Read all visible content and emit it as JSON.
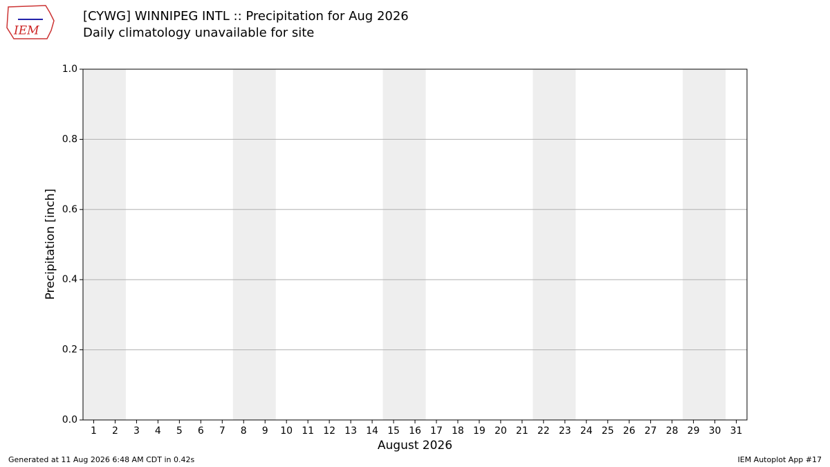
{
  "chart_data": {
    "type": "bar",
    "title": "[CYWG] WINNIPEG INTL :: Precipitation for Aug 2026",
    "subtitle": "Daily climatology unavailable for site",
    "xlabel": "August 2026",
    "ylabel": "Precipitation [inch]",
    "xlim": [
      0.5,
      31.5
    ],
    "xticks": [
      1,
      2,
      3,
      4,
      5,
      6,
      7,
      8,
      9,
      10,
      11,
      12,
      13,
      14,
      15,
      16,
      17,
      18,
      19,
      20,
      21,
      22,
      23,
      24,
      25,
      26,
      27,
      28,
      29,
      30,
      31
    ],
    "ylim": [
      0,
      1
    ],
    "yticks": [
      {
        "value": 0,
        "label": "0.0"
      },
      {
        "value": 0.2,
        "label": "0.2"
      },
      {
        "value": 0.4,
        "label": "0.4"
      },
      {
        "value": 0.6,
        "label": "0.6"
      },
      {
        "value": 0.8,
        "label": "0.8"
      },
      {
        "value": 1,
        "label": "1.0"
      }
    ],
    "grid": true,
    "shaded_ranges": [
      [
        0.5,
        2.5
      ],
      [
        7.5,
        9.5
      ],
      [
        14.5,
        16.5
      ],
      [
        21.5,
        23.5
      ],
      [
        28.5,
        30.5
      ]
    ],
    "shade_color": "#eeeeee"
  },
  "logo_text": "IEM",
  "footer": {
    "left": "Generated at 11 Aug 2026 6:48 AM CDT in 0.42s",
    "right": "IEM Autoplot App #17"
  }
}
